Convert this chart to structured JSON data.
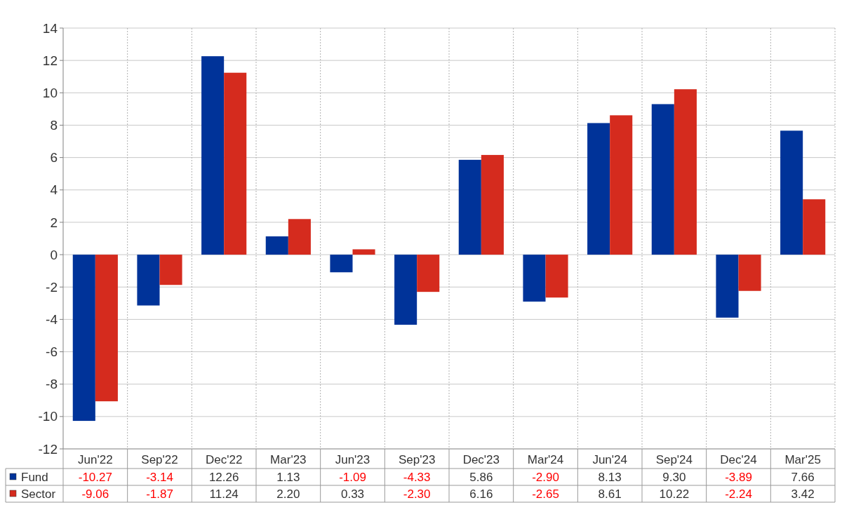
{
  "chart_data": {
    "type": "bar",
    "categories": [
      "Jun'22",
      "Sep'22",
      "Dec'22",
      "Mar'23",
      "Jun'23",
      "Sep'23",
      "Dec'23",
      "Mar'24",
      "Jun'24",
      "Sep'24",
      "Dec'24",
      "Mar'25"
    ],
    "series": [
      {
        "name": "Fund",
        "color": "#003399",
        "values": [
          -10.27,
          -3.14,
          12.26,
          1.13,
          -1.09,
          -4.33,
          5.86,
          -2.9,
          8.13,
          9.3,
          -3.89,
          7.66
        ],
        "value_labels": [
          "-10.27",
          "-3.14",
          "12.26",
          "1.13",
          "-1.09",
          "-4.33",
          "5.86",
          "-2.90",
          "8.13",
          "9.30",
          "-3.89",
          "7.66"
        ]
      },
      {
        "name": "Sector",
        "color": "#d52b1e",
        "values": [
          -9.06,
          -1.87,
          11.24,
          2.2,
          0.33,
          -2.3,
          6.16,
          -2.65,
          8.61,
          10.22,
          -2.24,
          3.42
        ],
        "value_labels": [
          "-9.06",
          "-1.87",
          "11.24",
          "2.20",
          "0.33",
          "-2.30",
          "6.16",
          "-2.65",
          "8.61",
          "10.22",
          "-2.24",
          "3.42"
        ]
      }
    ],
    "ylim": [
      -12,
      14
    ],
    "yticks": [
      -12,
      -10,
      -8,
      -6,
      -4,
      -2,
      0,
      2,
      4,
      6,
      8,
      10,
      12,
      14
    ],
    "grid": true,
    "legend": "bottom"
  }
}
